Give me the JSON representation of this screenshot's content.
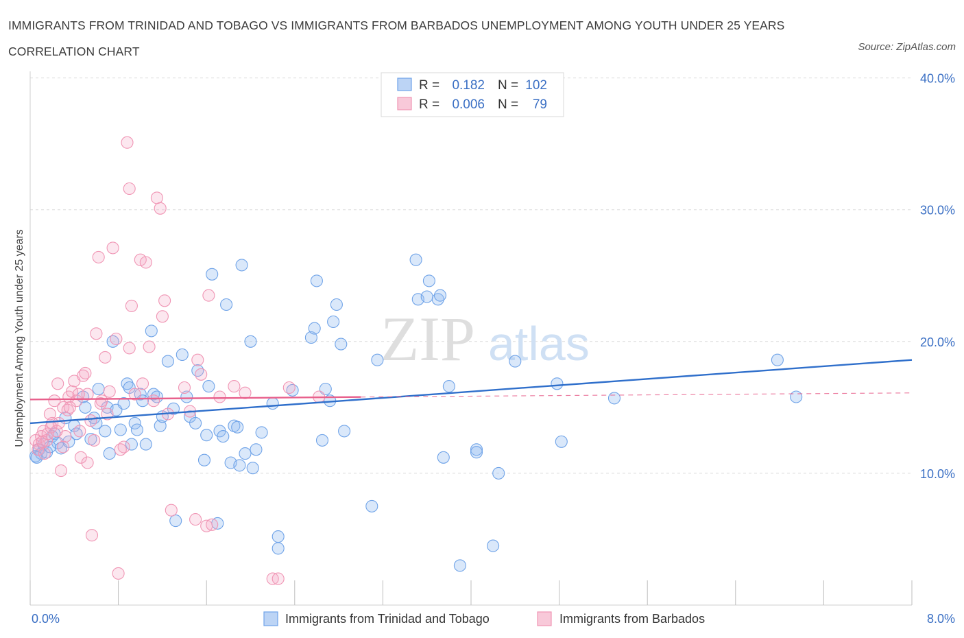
{
  "title": "IMMIGRANTS FROM TRINIDAD AND TOBAGO VS IMMIGRANTS FROM BARBADOS UNEMPLOYMENT AMONG YOUTH UNDER 25 YEARS CORRELATION CHART",
  "source": "Source: ZipAtlas.com",
  "watermark": {
    "zip": "ZIP",
    "atlas": "atlas"
  },
  "colors": {
    "blue": "#6fa3e8",
    "blue_line": "#2f6fcb",
    "pink": "#f095b4",
    "pink_line": "#e8608c",
    "tick": "#3a6fc4"
  },
  "stats": {
    "r_label": "R =",
    "n_label": "N =",
    "rows": [
      {
        "r": "0.182",
        "n": "102"
      },
      {
        "r": "0.006",
        "n": "79"
      }
    ]
  },
  "chart_data": {
    "type": "scatter",
    "ylabel": "Unemployment Among Youth under 25 years",
    "x_tick_labels": [
      "0.0%",
      "8.0%"
    ],
    "y_tick_labels": [
      "10.0%",
      "20.0%",
      "30.0%",
      "40.0%"
    ],
    "xlim": [
      0,
      8
    ],
    "ylim": [
      0,
      40.5
    ],
    "grid": true,
    "legend_position": "bottom",
    "series": [
      {
        "name": "Immigrants from Trinidad and Tobago",
        "color": "#6fa3e8",
        "trend": {
          "x0": 0,
          "y0": 13.8,
          "x1": 8,
          "y1": 18.6,
          "solid_until": 8
        },
        "points": [
          [
            0.05,
            11.3
          ],
          [
            0.08,
            11.8
          ],
          [
            0.1,
            11.5
          ],
          [
            0.12,
            12.2
          ],
          [
            0.15,
            11.6
          ],
          [
            0.2,
            12.8
          ],
          [
            0.22,
            13.0
          ],
          [
            0.25,
            12.3
          ],
          [
            0.28,
            11.9
          ],
          [
            0.32,
            14.2
          ],
          [
            0.35,
            12.4
          ],
          [
            0.4,
            13.6
          ],
          [
            0.42,
            13.0
          ],
          [
            0.48,
            15.8
          ],
          [
            0.5,
            15.0
          ],
          [
            0.55,
            12.6
          ],
          [
            0.58,
            14.2
          ],
          [
            0.6,
            13.8
          ],
          [
            0.62,
            16.4
          ],
          [
            0.68,
            13.2
          ],
          [
            0.7,
            15.0
          ],
          [
            0.72,
            11.5
          ],
          [
            0.75,
            20.0
          ],
          [
            0.78,
            14.8
          ],
          [
            0.82,
            13.3
          ],
          [
            0.85,
            15.3
          ],
          [
            0.88,
            16.8
          ],
          [
            0.9,
            16.5
          ],
          [
            0.92,
            12.2
          ],
          [
            0.95,
            13.8
          ],
          [
            0.97,
            13.3
          ],
          [
            1.0,
            16.0
          ],
          [
            1.02,
            15.5
          ],
          [
            1.05,
            12.2
          ],
          [
            1.1,
            20.8
          ],
          [
            1.12,
            16.0
          ],
          [
            1.15,
            15.8
          ],
          [
            1.18,
            13.6
          ],
          [
            1.2,
            14.3
          ],
          [
            1.25,
            18.5
          ],
          [
            1.3,
            14.9
          ],
          [
            1.32,
            6.4
          ],
          [
            1.38,
            19.0
          ],
          [
            1.42,
            15.8
          ],
          [
            1.45,
            14.3
          ],
          [
            1.5,
            13.8
          ],
          [
            1.52,
            17.8
          ],
          [
            1.58,
            11.0
          ],
          [
            1.6,
            12.9
          ],
          [
            1.62,
            16.6
          ],
          [
            1.65,
            25.1
          ],
          [
            1.7,
            6.2
          ],
          [
            1.72,
            13.2
          ],
          [
            1.75,
            12.8
          ],
          [
            1.78,
            22.8
          ],
          [
            1.82,
            10.8
          ],
          [
            1.85,
            13.6
          ],
          [
            1.88,
            13.5
          ],
          [
            1.9,
            10.6
          ],
          [
            1.92,
            25.8
          ],
          [
            1.95,
            11.5
          ],
          [
            2.0,
            20.0
          ],
          [
            2.02,
            10.4
          ],
          [
            2.05,
            11.8
          ],
          [
            2.1,
            13.1
          ],
          [
            2.2,
            15.3
          ],
          [
            2.25,
            5.2
          ],
          [
            2.25,
            4.3
          ],
          [
            2.38,
            16.3
          ],
          [
            2.55,
            20.3
          ],
          [
            2.58,
            21.0
          ],
          [
            2.6,
            24.6
          ],
          [
            2.65,
            12.5
          ],
          [
            2.68,
            16.4
          ],
          [
            2.72,
            15.5
          ],
          [
            2.75,
            21.5
          ],
          [
            2.78,
            22.8
          ],
          [
            2.82,
            19.8
          ],
          [
            2.85,
            13.2
          ],
          [
            3.1,
            7.5
          ],
          [
            3.15,
            18.6
          ],
          [
            3.5,
            26.2
          ],
          [
            3.52,
            23.2
          ],
          [
            3.6,
            23.4
          ],
          [
            3.62,
            24.6
          ],
          [
            3.7,
            23.2
          ],
          [
            3.72,
            23.5
          ],
          [
            3.75,
            11.2
          ],
          [
            3.8,
            16.6
          ],
          [
            3.9,
            3.0
          ],
          [
            4.05,
            11.8
          ],
          [
            4.05,
            11.6
          ],
          [
            4.2,
            4.5
          ],
          [
            4.25,
            10.0
          ],
          [
            4.4,
            18.5
          ],
          [
            4.78,
            16.8
          ],
          [
            4.82,
            12.4
          ],
          [
            5.3,
            15.7
          ],
          [
            6.78,
            18.6
          ],
          [
            6.95,
            15.8
          ],
          [
            0.06,
            11.2
          ],
          [
            0.18,
            12.0
          ]
        ]
      },
      {
        "name": "Immigrants from Barbados",
        "color": "#f095b4",
        "trend": {
          "x0": 0,
          "y0": 15.6,
          "x1": 8,
          "y1": 16.1,
          "solid_until": 3.0
        },
        "points": [
          [
            0.05,
            12.5
          ],
          [
            0.08,
            12.2
          ],
          [
            0.1,
            12.8
          ],
          [
            0.12,
            13.2
          ],
          [
            0.15,
            12.5
          ],
          [
            0.18,
            14.5
          ],
          [
            0.2,
            13.8
          ],
          [
            0.22,
            15.5
          ],
          [
            0.25,
            16.8
          ],
          [
            0.28,
            10.2
          ],
          [
            0.3,
            15.0
          ],
          [
            0.32,
            12.8
          ],
          [
            0.35,
            15.8
          ],
          [
            0.38,
            16.2
          ],
          [
            0.4,
            17.0
          ],
          [
            0.42,
            15.5
          ],
          [
            0.45,
            13.2
          ],
          [
            0.48,
            17.4
          ],
          [
            0.5,
            17.6
          ],
          [
            0.52,
            16.0
          ],
          [
            0.55,
            14.0
          ],
          [
            0.58,
            12.5
          ],
          [
            0.6,
            20.6
          ],
          [
            0.62,
            26.4
          ],
          [
            0.65,
            15.5
          ],
          [
            0.68,
            18.8
          ],
          [
            0.72,
            16.2
          ],
          [
            0.75,
            27.1
          ],
          [
            0.78,
            20.2
          ],
          [
            0.8,
            2.4
          ],
          [
            0.85,
            12.0
          ],
          [
            0.88,
            35.1
          ],
          [
            0.9,
            31.6
          ],
          [
            0.92,
            22.7
          ],
          [
            0.95,
            16.0
          ],
          [
            1.0,
            26.2
          ],
          [
            1.02,
            16.8
          ],
          [
            1.05,
            26.0
          ],
          [
            1.08,
            19.6
          ],
          [
            1.12,
            15.5
          ],
          [
            1.15,
            30.9
          ],
          [
            1.18,
            30.1
          ],
          [
            1.2,
            21.9
          ],
          [
            1.22,
            23.1
          ],
          [
            1.25,
            14.5
          ],
          [
            1.28,
            7.2
          ],
          [
            1.4,
            16.5
          ],
          [
            1.45,
            14.7
          ],
          [
            1.5,
            6.5
          ],
          [
            1.52,
            18.6
          ],
          [
            1.55,
            17.5
          ],
          [
            1.6,
            6.0
          ],
          [
            1.62,
            23.5
          ],
          [
            1.65,
            6.1
          ],
          [
            1.72,
            15.8
          ],
          [
            1.85,
            16.6
          ],
          [
            1.95,
            16.1
          ],
          [
            2.2,
            2.0
          ],
          [
            2.25,
            2.0
          ],
          [
            2.35,
            16.5
          ],
          [
            2.62,
            15.8
          ],
          [
            0.07,
            11.8
          ],
          [
            0.11,
            12.4
          ],
          [
            0.13,
            11.5
          ],
          [
            0.16,
            13.0
          ],
          [
            0.19,
            13.5
          ],
          [
            0.24,
            13.2
          ],
          [
            0.26,
            13.8
          ],
          [
            0.3,
            12.0
          ],
          [
            0.34,
            14.8
          ],
          [
            0.36,
            15.0
          ],
          [
            0.44,
            16.0
          ],
          [
            0.46,
            11.2
          ],
          [
            0.52,
            10.8
          ],
          [
            0.56,
            5.3
          ],
          [
            0.64,
            15.3
          ],
          [
            0.7,
            14.5
          ],
          [
            0.82,
            11.8
          ],
          [
            0.9,
            19.5
          ]
        ]
      }
    ]
  }
}
